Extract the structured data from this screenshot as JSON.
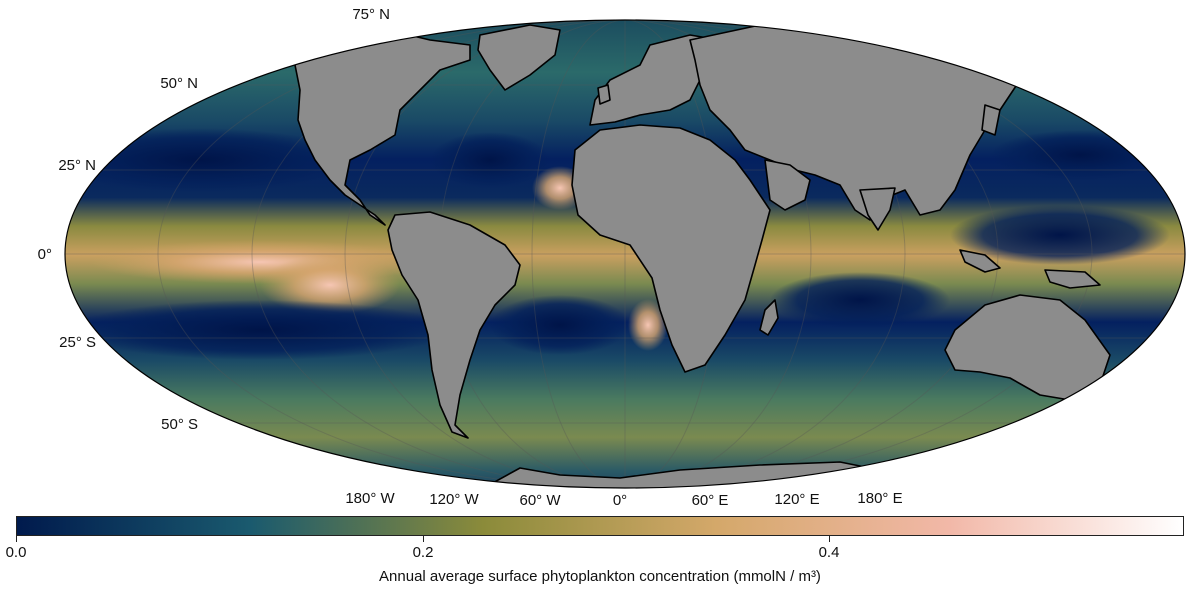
{
  "map": {
    "projection": "Mollweide",
    "land_color": "#8c8c8c",
    "coast_color": "#000000",
    "grid_color": "#666666",
    "lat_labels": [
      "75° N",
      "50° N",
      "25° N",
      "0°",
      "25° S",
      "50° S"
    ],
    "lon_labels": [
      "180° W",
      "120° W",
      "60° W",
      "0°",
      "60° E",
      "120° E",
      "180° E"
    ]
  },
  "colorbar": {
    "title": "Annual average surface phytoplankton concentration (mmolN / m³)",
    "tick_labels": [
      "0.0",
      "0.2",
      "0.4"
    ],
    "tick_values": [
      0.0,
      0.2,
      0.4
    ],
    "range": [
      0.0,
      0.58
    ],
    "colormap": [
      "#001a4d",
      "#1a5a6e",
      "#8b8b3a",
      "#d4a86a",
      "#f2b8a8",
      "#ffffff"
    ]
  }
}
